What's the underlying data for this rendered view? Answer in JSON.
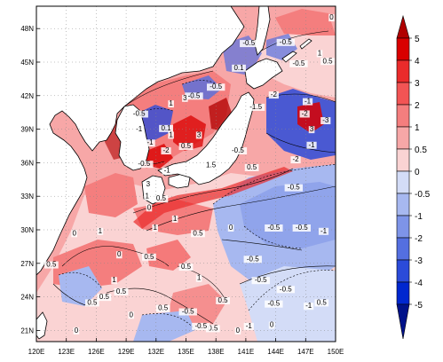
{
  "map": {
    "lon_range": [
      120,
      150
    ],
    "lat_range": [
      20,
      50
    ],
    "lon_ticks": [
      "120E",
      "123E",
      "126E",
      "129E",
      "132E",
      "135E",
      "138E",
      "141E",
      "144E",
      "147E",
      "150E"
    ],
    "lat_ticks": [
      "48N",
      "45N",
      "42N",
      "39N",
      "36N",
      "33N",
      "30N",
      "27N",
      "24N",
      "21N"
    ],
    "grid": true,
    "land_color": "#ffffff",
    "coastline_color": "#000000"
  },
  "colorbar": {
    "levels": [
      "5",
      "4",
      "3",
      "2",
      "1",
      "0.5",
      "0",
      "-0.5",
      "-1",
      "-2",
      "-3",
      "-4",
      "-5"
    ],
    "colors": [
      "#b00000",
      "#d90000",
      "#ea2b2b",
      "#f25454",
      "#f47e7e",
      "#f7a7a7",
      "#fad3d3",
      "#d3dcf7",
      "#a7b8f0",
      "#7e94e8",
      "#546fe0",
      "#2b4bd9",
      "#0027cf",
      "#00128a"
    ],
    "orientation": "vertical"
  },
  "contour_labels": [
    {
      "text": "0",
      "lon": 123.8,
      "lat": 29.5
    },
    {
      "text": "0.5",
      "lon": 121.5,
      "lat": 26.7
    },
    {
      "text": "1",
      "lon": 126.4,
      "lat": 29.7
    },
    {
      "text": "0.5",
      "lon": 126.8,
      "lat": 23.8
    },
    {
      "text": "0.5",
      "lon": 125.6,
      "lat": 23.3
    },
    {
      "text": "1",
      "lon": 127.8,
      "lat": 25.3
    },
    {
      "text": "0.5",
      "lon": 128.5,
      "lat": 24.3
    },
    {
      "text": "0",
      "lon": 128.3,
      "lat": 27.6
    },
    {
      "text": "0.5",
      "lon": 131.3,
      "lat": 27.4
    },
    {
      "text": "0",
      "lon": 131.3,
      "lat": 31.8
    },
    {
      "text": "1",
      "lon": 133.9,
      "lat": 30.8
    },
    {
      "text": "1",
      "lon": 131.9,
      "lat": 30.0
    },
    {
      "text": "0.5",
      "lon": 136.2,
      "lat": 29.5
    },
    {
      "text": "0",
      "lon": 139.5,
      "lat": 30.0
    },
    {
      "text": "-0.5",
      "lon": 143.8,
      "lat": 30.0
    },
    {
      "text": "-0.5",
      "lon": 146.6,
      "lat": 30.0
    },
    {
      "text": "-1",
      "lon": 148.8,
      "lat": 29.7
    },
    {
      "text": "-0.5",
      "lon": 141.7,
      "lat": 27.2
    },
    {
      "text": "0.5",
      "lon": 135.0,
      "lat": 26.5
    },
    {
      "text": "1",
      "lon": 136.3,
      "lat": 25.5
    },
    {
      "text": "-0.5",
      "lon": 142.5,
      "lat": 25.3
    },
    {
      "text": "-0.5",
      "lon": 145.0,
      "lat": 24.5
    },
    {
      "text": "-1",
      "lon": 147.3,
      "lat": 23.0
    },
    {
      "text": "-0.5",
      "lon": 143.8,
      "lat": 23.2
    },
    {
      "text": "0.5",
      "lon": 148.6,
      "lat": 23.3
    },
    {
      "text": "-0.5",
      "lon": 135.2,
      "lat": 22.5
    },
    {
      "text": "0.5",
      "lon": 138.7,
      "lat": 23.5
    },
    {
      "text": "0.5",
      "lon": 137.7,
      "lat": 21.0
    },
    {
      "text": "-0.5",
      "lon": 136.5,
      "lat": 21.2
    },
    {
      "text": "-1",
      "lon": 141.3,
      "lat": 21.2
    },
    {
      "text": "0",
      "lon": 140.2,
      "lat": 20.8
    },
    {
      "text": "0",
      "lon": 143.6,
      "lat": 21.3
    },
    {
      "text": "0.5",
      "lon": 132.7,
      "lat": 22.8
    },
    {
      "text": "0",
      "lon": 129.5,
      "lat": 22.2
    },
    {
      "text": "0",
      "lon": 124.0,
      "lat": 20.8
    },
    {
      "text": "1.5",
      "lon": 137.5,
      "lat": 35.6
    },
    {
      "text": "-0.5",
      "lon": 140.2,
      "lat": 36.9
    },
    {
      "text": "0.5",
      "lon": 141.6,
      "lat": 35.4
    },
    {
      "text": "-2",
      "lon": 146.0,
      "lat": 36.1
    },
    {
      "text": "-1",
      "lon": 147.6,
      "lat": 37.4
    },
    {
      "text": "-0.5",
      "lon": 145.8,
      "lat": 33.6
    },
    {
      "text": "-3",
      "lon": 149.0,
      "lat": 39.6
    },
    {
      "text": "-2",
      "lon": 146.9,
      "lat": 40.2
    },
    {
      "text": "-1.5",
      "lon": 142.0,
      "lat": 40.8
    },
    {
      "text": "-2",
      "lon": 143.8,
      "lat": 41.9
    },
    {
      "text": "-1",
      "lon": 147.2,
      "lat": 41.3
    },
    {
      "text": "3",
      "lon": 147.6,
      "lat": 38.8
    },
    {
      "text": "-0.5",
      "lon": 145.0,
      "lat": 46.6
    },
    {
      "text": "-0.5",
      "lon": 146.3,
      "lat": 44.7
    },
    {
      "text": "0.5",
      "lon": 149.2,
      "lat": 44.9
    },
    {
      "text": "1",
      "lon": 148.4,
      "lat": 45.6
    },
    {
      "text": "0",
      "lon": 149.6,
      "lat": 48.8
    },
    {
      "text": "-0.5",
      "lon": 141.3,
      "lat": 46.5
    },
    {
      "text": "0.1",
      "lon": 140.3,
      "lat": 44.3
    },
    {
      "text": "-0.5",
      "lon": 138.0,
      "lat": 42.6
    },
    {
      "text": "-0.5",
      "lon": 135.8,
      "lat": 41.8
    },
    {
      "text": "3",
      "lon": 134.9,
      "lat": 41.6
    },
    {
      "text": "-0.5",
      "lon": 130.3,
      "lat": 40.2
    },
    {
      "text": "-1",
      "lon": 130.3,
      "lat": 38.8
    },
    {
      "text": "0.1",
      "lon": 133.0,
      "lat": 38.9
    },
    {
      "text": "-2",
      "lon": 133.0,
      "lat": 36.9
    },
    {
      "text": "-0.5",
      "lon": 130.8,
      "lat": 35.7
    },
    {
      "text": "0.5",
      "lon": 135.0,
      "lat": 37.3
    },
    {
      "text": "-1",
      "lon": 133.1,
      "lat": 35.1
    },
    {
      "text": "3",
      "lon": 136.3,
      "lat": 38.3
    },
    {
      "text": "3",
      "lon": 131.2,
      "lat": 33.9
    },
    {
      "text": "1",
      "lon": 131.1,
      "lat": 32.8
    },
    {
      "text": "0.5",
      "lon": 132.5,
      "lat": 32.6
    },
    {
      "text": "1",
      "lon": 133.5,
      "lat": 38.3
    },
    {
      "text": "-1",
      "lon": 131.4,
      "lat": 37.6
    },
    {
      "text": "1",
      "lon": 133.5,
      "lat": 41.1
    }
  ]
}
